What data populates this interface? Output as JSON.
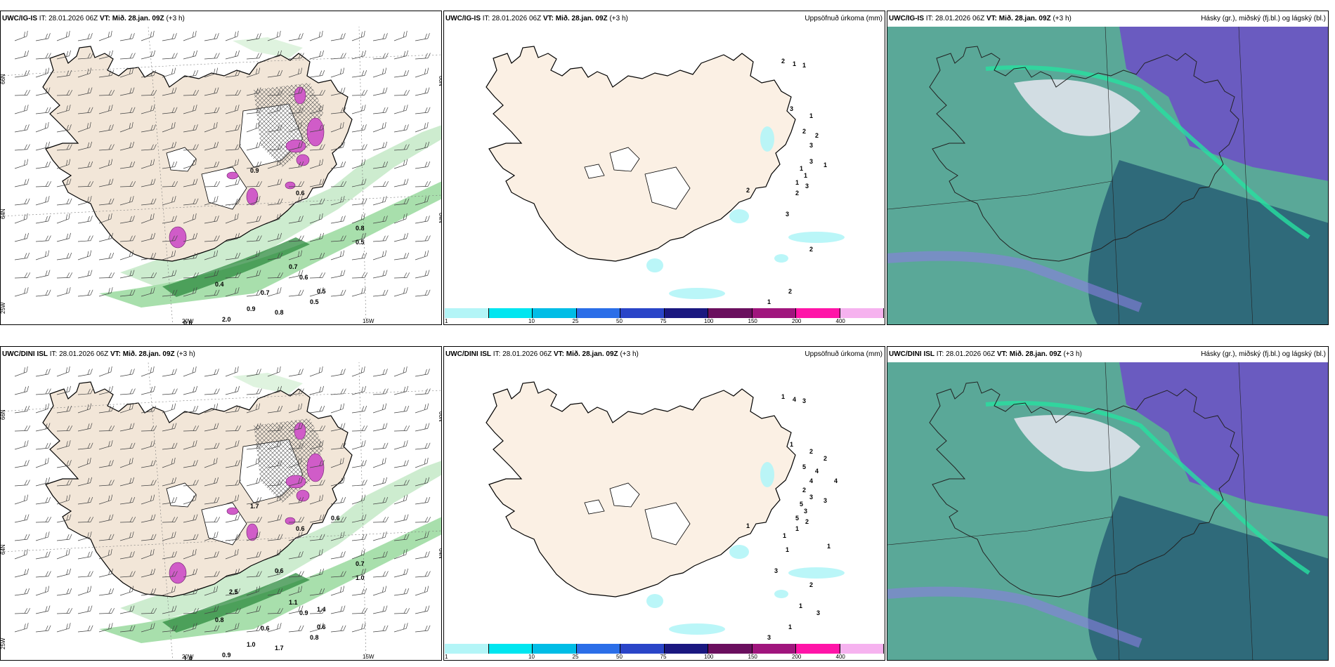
{
  "rows": [
    {
      "model": "UWC/IG-IS",
      "it_label": "IT:",
      "it_value": "28.01.2026 06Z",
      "vt_label": "VT:",
      "vt_value": "Mið. 28.jan. 09Z",
      "lead": "(+3 h)",
      "precip_labels": [
        "2",
        "1",
        "1",
        "3",
        "1",
        "2",
        "2",
        "3",
        "3",
        "1",
        "1",
        "1",
        "3",
        "2",
        "2",
        "1",
        "3",
        "2",
        "2",
        "1"
      ],
      "wind_labels": [
        "0.8",
        "0.5",
        "0.6",
        "0.5",
        "0.7",
        "0.5",
        "0.9",
        "0.8",
        "0.6",
        "2.0",
        "0.9",
        "0.6",
        "0.4",
        "0.7"
      ]
    },
    {
      "model": "UWC/DINI ISL",
      "it_label": "IT:",
      "it_value": "28.01.2026 06Z",
      "vt_label": "VT:",
      "vt_value": "Mið. 28.jan. 09Z",
      "lead": "(+3 h)",
      "precip_labels": [
        "1",
        "4",
        "3",
        "1",
        "2",
        "5",
        "4",
        "4",
        "3",
        "5",
        "3",
        "5",
        "2",
        "1",
        "1",
        "3",
        "1",
        "2",
        "1",
        "3",
        "2",
        "2",
        "1",
        "4",
        "1",
        "3",
        "1",
        "3"
      ],
      "wind_labels": [
        "0.7",
        "1.0",
        "0.9",
        "0.6",
        "0.6",
        "0.8",
        "1.0",
        "1.7",
        "1.4",
        "0.9",
        "1.7",
        "0.6",
        "0.8",
        "1.1",
        "1.4",
        "2.5",
        "0.6",
        "0.6"
      ]
    }
  ],
  "precip_title": "Uppsöfnuð úrkoma (mm)",
  "cloud_title": "Hásky (gr.), miðský (fj.bl.) og lágský (bl.)",
  "colorbar": {
    "ticks": [
      "1",
      "10",
      "25",
      "50",
      "75",
      "100",
      "150",
      "200",
      "400"
    ],
    "colors": [
      "#b3f5f7",
      "#00e6f0",
      "#00bde6",
      "#2b6ee8",
      "#2a45c8",
      "#1a1880",
      "#6a0f5e",
      "#a0157d",
      "#ff14a8",
      "#f6b2ef"
    ]
  },
  "axes": {
    "lat_labels": [
      "66N",
      "64N",
      "25W"
    ],
    "lon_labels": [
      "20W",
      "15W"
    ],
    "right_labels": [
      "66N",
      "64N"
    ]
  }
}
